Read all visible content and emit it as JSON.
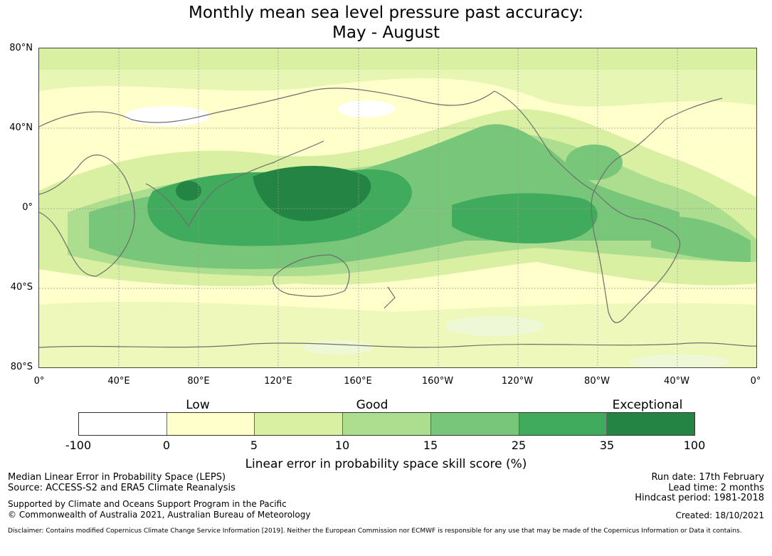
{
  "title": {
    "line1": "Monthly mean sea level pressure past accuracy:",
    "line2": "May - August"
  },
  "map": {
    "lat_labels": [
      "80°N",
      "40°N",
      "0°",
      "40°S",
      "80°S"
    ],
    "lon_labels": [
      "0°",
      "40°E",
      "80°E",
      "120°E",
      "160°E",
      "160°W",
      "120°W",
      "80°W",
      "40°W",
      "0°"
    ],
    "colors": {
      "white": "#ffffff",
      "pale_yellow": "#ffffcc",
      "light_yellow_green": "#d9f0a3",
      "light_green": "#addd8e",
      "medium_green": "#78c679",
      "green": "#41ab5d",
      "dark_green": "#238443",
      "coastline": "#6e6e6e",
      "grid": "#9a9a9a"
    }
  },
  "colorbar": {
    "category_labels": [
      "Low",
      "Good",
      "Exceptional"
    ],
    "ticks": [
      "-100",
      "0",
      "5",
      "10",
      "15",
      "25",
      "35",
      "100"
    ],
    "segment_colors": [
      "#ffffff",
      "#ffffcc",
      "#d9f0a3",
      "#addd8e",
      "#78c679",
      "#41ab5d",
      "#238443"
    ],
    "title": "Linear error in probability space skill score (%)"
  },
  "footer": {
    "left_line1": "Median Linear Error in Probability Space (LEPS)",
    "left_line2": "Source: ACCESS-S2 and ERA5 Climate Reanalysis",
    "left_line3": "Supported by Climate and Oceans Support Program in the Pacific",
    "left_line4": "© Commonwealth of Australia 2021, Australian Bureau of Meteorology",
    "right_line1": "Run date: 17th February",
    "right_line2": "Lead time: 2 months",
    "right_line3": "Hindcast period: 1981-2018",
    "right_line4": "Created: 18/10/2021",
    "disclaimer": "Disclaimer: Contains modified Copernicus Climate Change Service Information [2019]. Neither the European Commission nor ECMWF is responsible for any use that may be made of the Copernicus Information or Data it contains."
  }
}
